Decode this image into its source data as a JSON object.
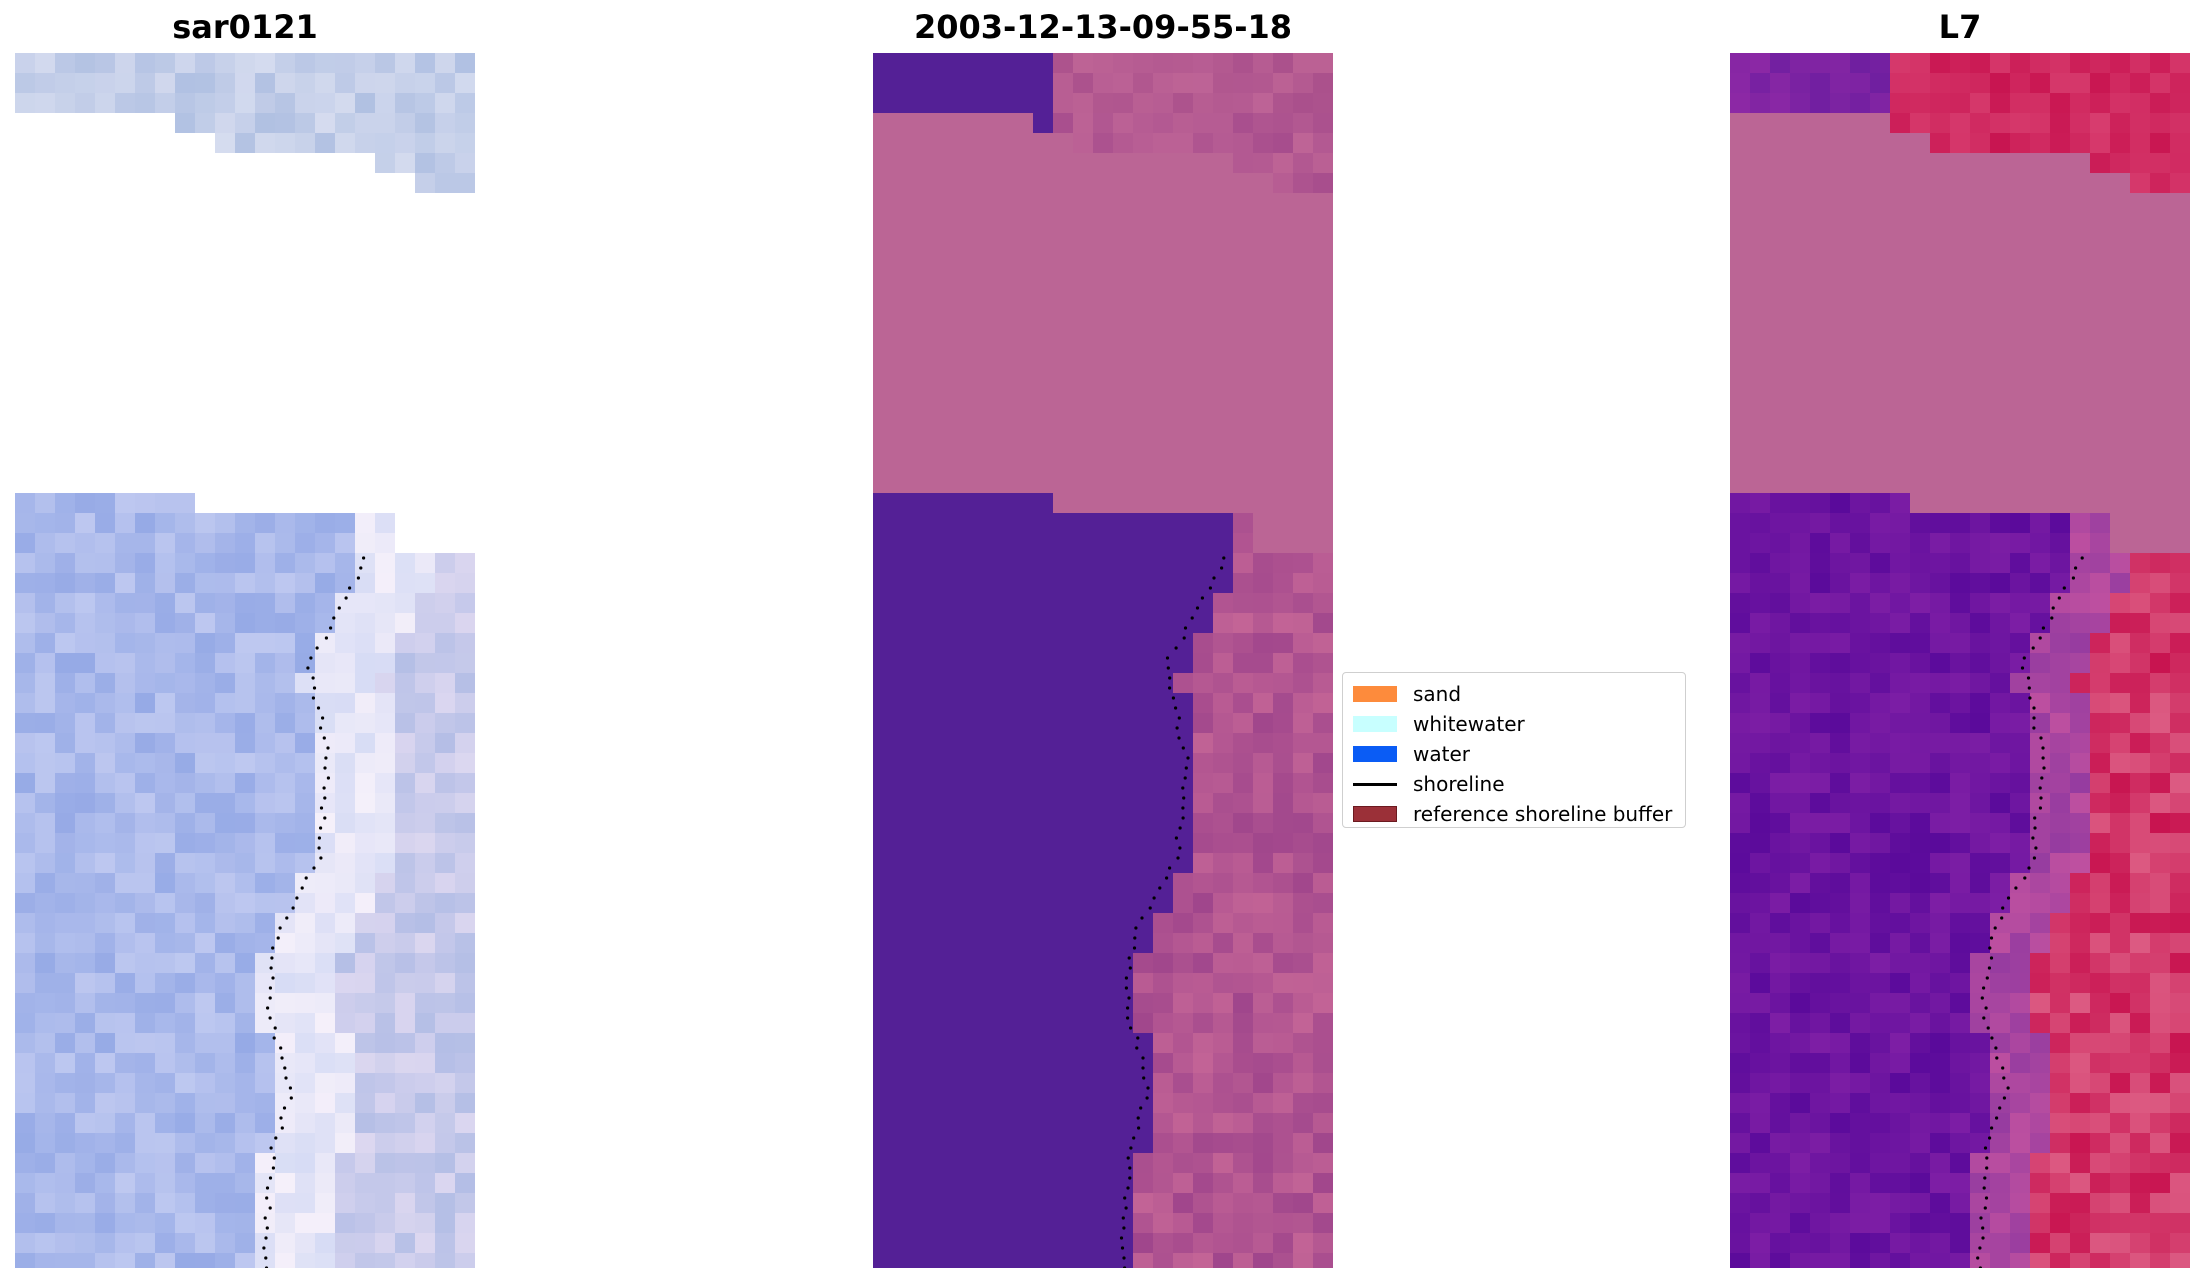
{
  "panels": [
    {
      "title": "sar0121"
    },
    {
      "title": "2003-12-13-09-55-18"
    },
    {
      "title": "L7"
    }
  ],
  "legend": {
    "items": [
      {
        "label": "sand",
        "type": "patch",
        "color": "#fd8b3c"
      },
      {
        "label": "whitewater",
        "type": "patch",
        "color": "#c8ffff"
      },
      {
        "label": "water",
        "type": "patch",
        "color": "#0a5cf5"
      },
      {
        "label": "shoreline",
        "type": "line",
        "color": "#000000"
      },
      {
        "label": "reference shoreline buffer",
        "type": "patch",
        "color": "#9b3038",
        "border": "#6b1a20"
      }
    ]
  },
  "colors": {
    "nodata_mid": "#bb6595",
    "water_class_mid": "#542096",
    "nodata_right": "#bb6595"
  }
}
